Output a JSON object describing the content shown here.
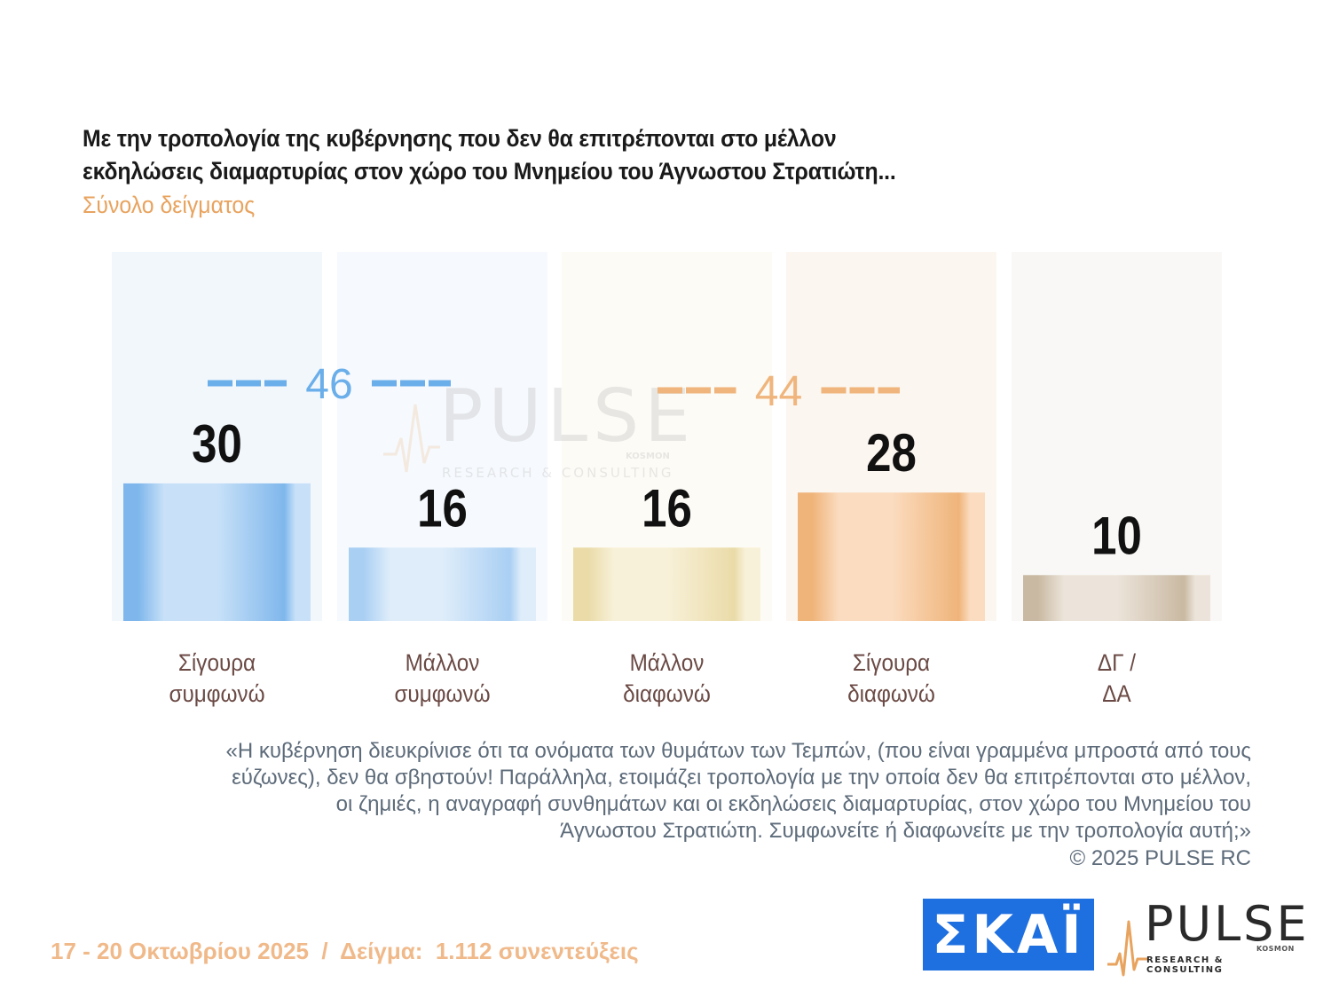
{
  "title_lines": [
    "Με την τροπολογία της κυβέρνησης που δεν θα επιτρέπονται στο μέλλον",
    "εκδηλώσεις διαμαρτυρίας στον χώρο του Μνημείου του Άγνωστου Στρατιώτη..."
  ],
  "subtitle": "Σύνολο δείγματος",
  "chart_data": {
    "type": "bar",
    "categories": [
      [
        "Σίγουρα",
        "συμφωνώ"
      ],
      [
        "Μάλλον",
        "συμφωνώ"
      ],
      [
        "Μάλλον",
        "διαφωνώ"
      ],
      [
        "Σίγουρα",
        "διαφωνώ"
      ],
      [
        "ΔΓ /",
        "ΔΑ"
      ]
    ],
    "values": [
      30,
      16,
      16,
      28,
      10
    ],
    "ylim": [
      0,
      100
    ],
    "groups": [
      {
        "label": "46",
        "from": 0,
        "to": 1,
        "color": "#6aaeea"
      },
      {
        "label": "44",
        "from": 2,
        "to": 3,
        "color": "#efb57c"
      }
    ],
    "bar_colors": [
      {
        "edge": "#7fb7ec",
        "mid": "#c8e1f8",
        "bg": "#f2f7fc"
      },
      {
        "edge": "#a9cff3",
        "mid": "#dfedfa",
        "bg": "#f6f9fd"
      },
      {
        "edge": "#eadba8",
        "mid": "#f8f1d9",
        "bg": "#fdfbf6"
      },
      {
        "edge": "#efb47a",
        "mid": "#fbdcc0",
        "bg": "#fcf6f1"
      },
      {
        "edge": "#c9b9a2",
        "mid": "#ece4da",
        "bg": "#f9f8f6"
      }
    ]
  },
  "watermark": {
    "word": "PULSE",
    "sub": "RESEARCH & CONSULTING",
    "small": "KOSMON"
  },
  "note_lines": [
    "«Η κυβέρνηση διευκρίνισε ότι τα ονόματα των θυμάτων των Τεμπών, (που είναι γραμμένα μπροστά από τους",
    "εύζωνες), δεν θα σβηστούν! Παράλληλα, ετοιμάζει τροπολογία με την οποία δεν θα επιτρέπονται στο μέλλον,",
    "οι ζημιές, η αναγραφή συνθημάτων και οι εκδηλώσεις διαμαρτυρίας, στον χώρο του Μνημείου του",
    "Άγνωστου Στρατιώτη. Συμφωνείτε ή διαφωνείτε με την τροπολογία αυτή;»"
  ],
  "copyright": "©  2025  PULSE RC",
  "footer": "17 - 20 Οκτωβρίου 2025  /  Δείγμα:  1.112 συνεντεύξεις",
  "logos": {
    "skai": "ΣΚΑΪ",
    "pulse_word": "PULSE",
    "pulse_sub": "RESEARCH & CONSULTING",
    "pulse_small": "KOSMON"
  }
}
